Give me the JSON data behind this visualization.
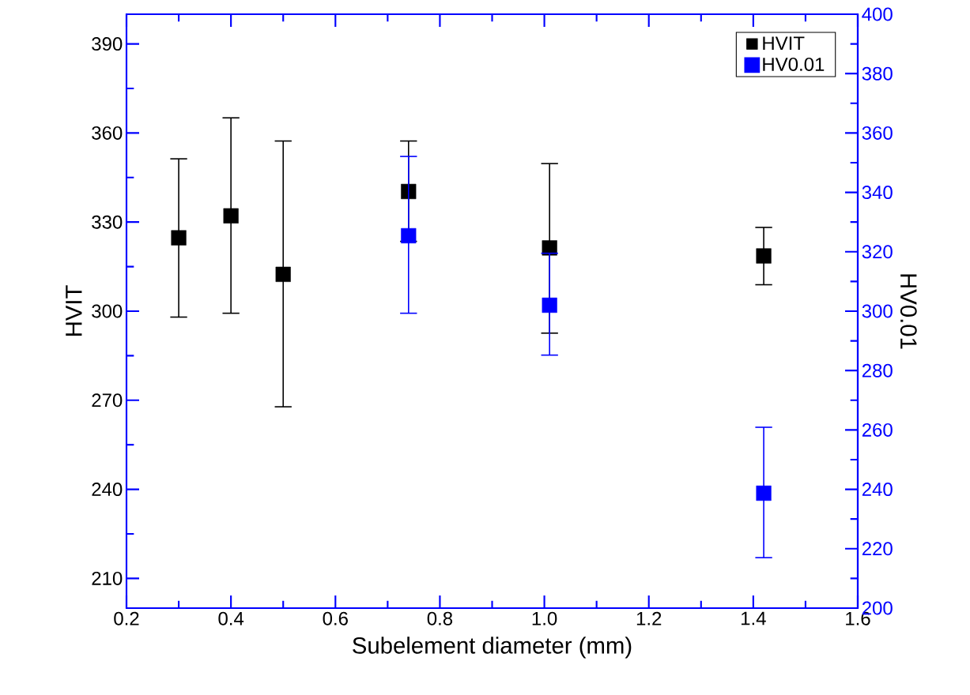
{
  "chart_data": {
    "type": "scatter",
    "xlabel": "Subelement diameter (mm)",
    "ylabel": "HVIT",
    "y2label": "HV0.01",
    "x": [
      0.3,
      0.4,
      0.5,
      0.74,
      1.01,
      1.42
    ],
    "xlim": [
      0.2,
      1.6
    ],
    "xticks": [
      0.2,
      0.4,
      0.6,
      0.8,
      {
        "value": 1.0,
        "label": "1.0"
      },
      1.2,
      1.4,
      1.6
    ],
    "ylim": [
      200,
      400
    ],
    "yticks": [
      210,
      240,
      270,
      300,
      330,
      360,
      390
    ],
    "y2lim": [
      200,
      400
    ],
    "y2ticks": [
      200,
      220,
      240,
      260,
      280,
      300,
      320,
      340,
      360,
      380,
      400
    ],
    "series": [
      {
        "name": "HVIT",
        "color": "#000000",
        "values": [
          324.7,
          332.1,
          312.4,
          340.3,
          321.3,
          318.6
        ],
        "errors": [
          [
            298.0,
            351.3
          ],
          [
            299.3,
            365.1
          ],
          [
            267.8,
            357.3
          ],
          [
            323.5,
            357.3
          ],
          [
            292.6,
            349.7
          ],
          [
            308.9,
            328.2
          ]
        ]
      },
      {
        "name": "HV0.01",
        "color": "#0000ff",
        "axis": "y2",
        "x": [
          0.74,
          1.01,
          1.42
        ],
        "values": [
          325.4,
          302.0,
          238.7
        ],
        "errors": [
          [
            299.3,
            352.1
          ],
          [
            285.2,
            319.5
          ],
          [
            217.0,
            260.9
          ]
        ]
      }
    ],
    "marker": "square",
    "legend": "top right",
    "grid": false
  }
}
